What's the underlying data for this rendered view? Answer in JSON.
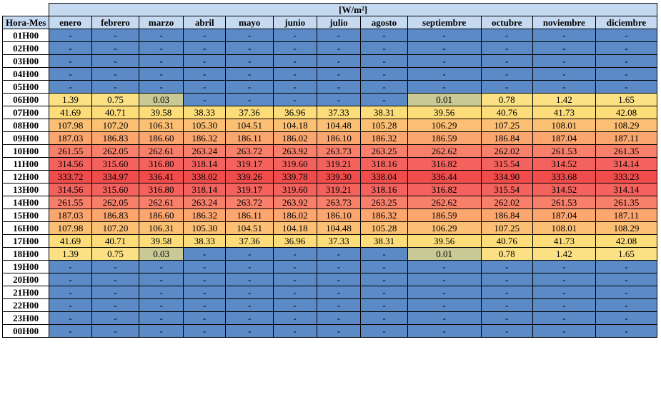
{
  "unit_label": "[W/m²]",
  "corner_label": "Hora-Mes",
  "months": [
    "enero",
    "febrero",
    "marzo",
    "abril",
    "mayo",
    "junio",
    "julio",
    "agosto",
    "septiembre",
    "octubre",
    "noviembre",
    "diciembre"
  ],
  "colors": {
    "blue": "#5b8ac6",
    "header": "#c5d9f1",
    "scale": [
      {
        "max": 0.5,
        "color": "#c9c995"
      },
      {
        "max": 2,
        "color": "#fbe184"
      },
      {
        "max": 45,
        "color": "#fddc7a"
      },
      {
        "max": 110,
        "color": "#fcc074"
      },
      {
        "max": 190,
        "color": "#fba56f"
      },
      {
        "max": 265,
        "color": "#f8806b"
      },
      {
        "max": 320,
        "color": "#f4625d"
      },
      {
        "max": 400,
        "color": "#f04c4c"
      }
    ]
  },
  "rows": [
    {
      "hour": "01H00",
      "values": [
        "-",
        "-",
        "-",
        "-",
        "-",
        "-",
        "-",
        "-",
        "-",
        "-",
        "-",
        "-"
      ]
    },
    {
      "hour": "02H00",
      "values": [
        "-",
        "-",
        "-",
        "-",
        "-",
        "-",
        "-",
        "-",
        "-",
        "-",
        "-",
        "-"
      ]
    },
    {
      "hour": "03H00",
      "values": [
        "-",
        "-",
        "-",
        "-",
        "-",
        "-",
        "-",
        "-",
        "-",
        "-",
        "-",
        "-"
      ]
    },
    {
      "hour": "04H00",
      "values": [
        "-",
        "-",
        "-",
        "-",
        "-",
        "-",
        "-",
        "-",
        "-",
        "-",
        "-",
        "-"
      ]
    },
    {
      "hour": "05H00",
      "values": [
        "-",
        "-",
        "-",
        "-",
        "-",
        "-",
        "-",
        "-",
        "-",
        "-",
        "-",
        "-"
      ]
    },
    {
      "hour": "06H00",
      "values": [
        "1.39",
        "0.75",
        "0.03",
        "-",
        "-",
        "-",
        "-",
        "-",
        "0.01",
        "0.78",
        "1.42",
        "1.65"
      ]
    },
    {
      "hour": "07H00",
      "values": [
        "41.69",
        "40.71",
        "39.58",
        "38.33",
        "37.36",
        "36.96",
        "37.33",
        "38.31",
        "39.56",
        "40.76",
        "41.73",
        "42.08"
      ]
    },
    {
      "hour": "08H00",
      "values": [
        "107.98",
        "107.20",
        "106.31",
        "105.30",
        "104.51",
        "104.18",
        "104.48",
        "105.28",
        "106.29",
        "107.25",
        "108.01",
        "108.29"
      ]
    },
    {
      "hour": "09H00",
      "values": [
        "187.03",
        "186.83",
        "186.60",
        "186.32",
        "186.11",
        "186.02",
        "186.10",
        "186.32",
        "186.59",
        "186.84",
        "187.04",
        "187.11"
      ]
    },
    {
      "hour": "10H00",
      "values": [
        "261.55",
        "262.05",
        "262.61",
        "263.24",
        "263.72",
        "263.92",
        "263.73",
        "263.25",
        "262.62",
        "262.02",
        "261.53",
        "261.35"
      ]
    },
    {
      "hour": "11H00",
      "values": [
        "314.56",
        "315.60",
        "316.80",
        "318.14",
        "319.17",
        "319.60",
        "319.21",
        "318.16",
        "316.82",
        "315.54",
        "314.52",
        "314.14"
      ]
    },
    {
      "hour": "12H00",
      "values": [
        "333.72",
        "334.97",
        "336.41",
        "338.02",
        "339.26",
        "339.78",
        "339.30",
        "338.04",
        "336.44",
        "334.90",
        "333.68",
        "333.23"
      ]
    },
    {
      "hour": "13H00",
      "values": [
        "314.56",
        "315.60",
        "316.80",
        "318.14",
        "319.17",
        "319.60",
        "319.21",
        "318.16",
        "316.82",
        "315.54",
        "314.52",
        "314.14"
      ]
    },
    {
      "hour": "14H00",
      "values": [
        "261.55",
        "262.05",
        "262.61",
        "263.24",
        "263.72",
        "263.92",
        "263.73",
        "263.25",
        "262.62",
        "262.02",
        "261.53",
        "261.35"
      ]
    },
    {
      "hour": "15H00",
      "values": [
        "187.03",
        "186.83",
        "186.60",
        "186.32",
        "186.11",
        "186.02",
        "186.10",
        "186.32",
        "186.59",
        "186.84",
        "187.04",
        "187.11"
      ]
    },
    {
      "hour": "16H00",
      "values": [
        "107.98",
        "107.20",
        "106.31",
        "105.30",
        "104.51",
        "104.18",
        "104.48",
        "105.28",
        "106.29",
        "107.25",
        "108.01",
        "108.29"
      ]
    },
    {
      "hour": "17H00",
      "values": [
        "41.69",
        "40.71",
        "39.58",
        "38.33",
        "37.36",
        "36.96",
        "37.33",
        "38.31",
        "39.56",
        "40.76",
        "41.73",
        "42.08"
      ]
    },
    {
      "hour": "18H00",
      "values": [
        "1.39",
        "0.75",
        "0.03",
        "-",
        "-",
        "-",
        "-",
        "-",
        "0.01",
        "0.78",
        "1.42",
        "1.65"
      ]
    },
    {
      "hour": "19H00",
      "values": [
        "-",
        "-",
        "-",
        "-",
        "-",
        "-",
        "-",
        "-",
        "-",
        "-",
        "-",
        "-"
      ]
    },
    {
      "hour": "20H00",
      "values": [
        "-",
        "-",
        "-",
        "-",
        "-",
        "-",
        "-",
        "-",
        "-",
        "-",
        "-",
        "-"
      ]
    },
    {
      "hour": "21H00",
      "values": [
        "-",
        "-",
        "-",
        "-",
        "-",
        "-",
        "-",
        "-",
        "-",
        "-",
        "-",
        "-"
      ]
    },
    {
      "hour": "22H00",
      "values": [
        "-",
        "-",
        "-",
        "-",
        "-",
        "-",
        "-",
        "-",
        "-",
        "-",
        "-",
        "-"
      ]
    },
    {
      "hour": "23H00",
      "values": [
        "-",
        "-",
        "-",
        "-",
        "-",
        "-",
        "-",
        "-",
        "-",
        "-",
        "-",
        "-"
      ]
    },
    {
      "hour": "00H00",
      "values": [
        "-",
        "-",
        "-",
        "-",
        "-",
        "-",
        "-",
        "-",
        "-",
        "-",
        "-",
        "-"
      ]
    }
  ]
}
